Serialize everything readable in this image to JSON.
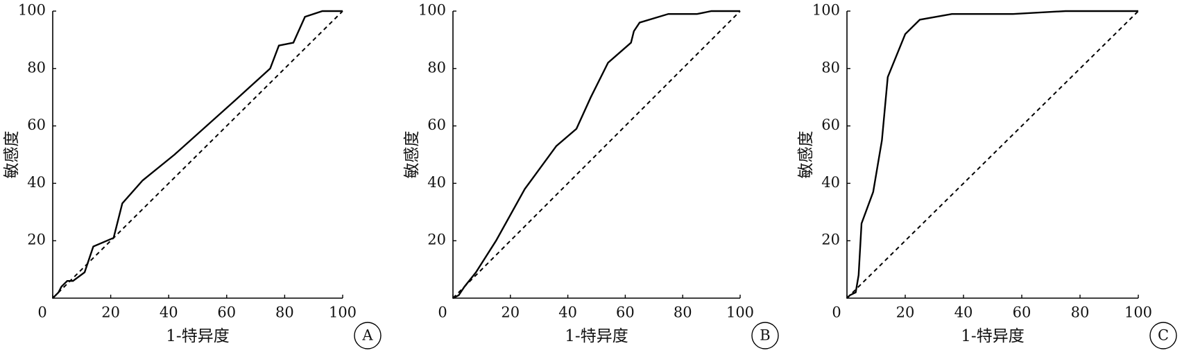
{
  "chart_data": [
    {
      "type": "line",
      "xlabel": "1-特异度",
      "ylabel": "敏感度",
      "panel_label": "A",
      "xlim": [
        0,
        100
      ],
      "ylim": [
        0,
        100
      ],
      "xticks": [
        0,
        20,
        40,
        60,
        80,
        100
      ],
      "yticks": [
        20,
        40,
        60,
        80,
        100
      ],
      "series": [
        {
          "color": "#000000",
          "dash": false,
          "x": [
            0,
            2,
            3,
            5,
            7,
            11,
            12,
            14,
            21,
            24,
            31,
            42,
            63,
            75,
            78,
            83,
            87,
            93,
            100
          ],
          "values": [
            0,
            2,
            4,
            6,
            6,
            9,
            12,
            18,
            21,
            33,
            41,
            50,
            69,
            80,
            88,
            89,
            98,
            100,
            100
          ]
        },
        {
          "color": "#000000",
          "dash": true,
          "x": [
            0,
            100
          ],
          "values": [
            0,
            100
          ]
        }
      ]
    },
    {
      "type": "line",
      "xlabel": "1-特异度",
      "ylabel": "敏感度",
      "panel_label": "B",
      "xlim": [
        0,
        100
      ],
      "ylim": [
        0,
        100
      ],
      "xticks": [
        0,
        20,
        40,
        60,
        80,
        100
      ],
      "yticks": [
        20,
        40,
        60,
        80,
        100
      ],
      "series": [
        {
          "color": "#000000",
          "dash": false,
          "x": [
            0,
            2,
            4,
            8,
            15,
            25,
            36,
            43,
            48,
            54,
            62,
            63,
            65,
            75,
            85,
            90,
            100
          ],
          "values": [
            0,
            1,
            4,
            9,
            20,
            38,
            53,
            59,
            70,
            82,
            89,
            93,
            96,
            99,
            99,
            100,
            100
          ]
        },
        {
          "color": "#000000",
          "dash": true,
          "x": [
            0,
            100
          ],
          "values": [
            0,
            100
          ]
        }
      ]
    },
    {
      "type": "line",
      "xlabel": "1-特异度",
      "ylabel": "敏感度",
      "panel_label": "C",
      "xlim": [
        0,
        100
      ],
      "ylim": [
        0,
        100
      ],
      "xticks": [
        0,
        20,
        40,
        60,
        80,
        100
      ],
      "yticks": [
        20,
        40,
        60,
        80,
        100
      ],
      "series": [
        {
          "color": "#000000",
          "dash": false,
          "x": [
            0,
            1,
            3,
            4,
            5,
            9,
            12,
            14,
            20,
            25,
            36,
            57,
            75,
            100
          ],
          "values": [
            0,
            1,
            2,
            8,
            26,
            37,
            55,
            77,
            92,
            97,
            99,
            99,
            100,
            100
          ]
        },
        {
          "color": "#000000",
          "dash": true,
          "x": [
            0,
            100
          ],
          "values": [
            0,
            100
          ]
        }
      ]
    }
  ]
}
